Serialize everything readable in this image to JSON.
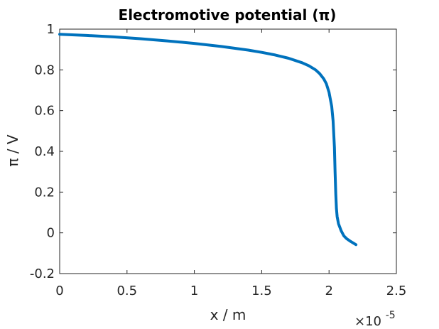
{
  "chart_data": {
    "type": "line",
    "title": "Electromotive potential (π)",
    "xlabel": "x / m",
    "ylabel": "π / V",
    "x_multiplier_label": "×10",
    "x_multiplier_exponent": "-5",
    "x_scale": 1e-05,
    "xlim": [
      0,
      2.5
    ],
    "ylim": [
      -0.2,
      1
    ],
    "xticks": [
      "0",
      "0.5",
      "1",
      "1.5",
      "2",
      "2.5"
    ],
    "yticks": [
      "-0.2",
      "0",
      "0.2",
      "0.4",
      "0.6",
      "0.8",
      "1"
    ],
    "xtick_values": [
      0,
      0.5,
      1,
      1.5,
      2,
      2.5
    ],
    "ytick_values": [
      -0.2,
      0,
      0.2,
      0.4,
      0.6,
      0.8,
      1
    ],
    "grid": false,
    "line_color": "#0072BD",
    "series": [
      {
        "x": [
          0,
          0.2,
          0.4,
          0.6,
          0.8,
          1.0,
          1.2,
          1.4,
          1.5,
          1.6,
          1.7,
          1.8,
          1.85,
          1.9,
          1.93,
          1.96,
          1.98,
          2.0,
          2.02,
          2.03,
          2.04,
          2.045,
          2.05,
          2.055,
          2.06,
          2.07,
          2.09,
          2.11,
          2.13,
          2.16,
          2.2
        ],
        "y": [
          0.975,
          0.969,
          0.962,
          0.953,
          0.942,
          0.93,
          0.915,
          0.897,
          0.886,
          0.873,
          0.857,
          0.835,
          0.82,
          0.8,
          0.782,
          0.757,
          0.732,
          0.69,
          0.62,
          0.55,
          0.42,
          0.3,
          0.19,
          0.12,
          0.08,
          0.045,
          0.01,
          -0.015,
          -0.028,
          -0.042,
          -0.058
        ]
      }
    ]
  }
}
